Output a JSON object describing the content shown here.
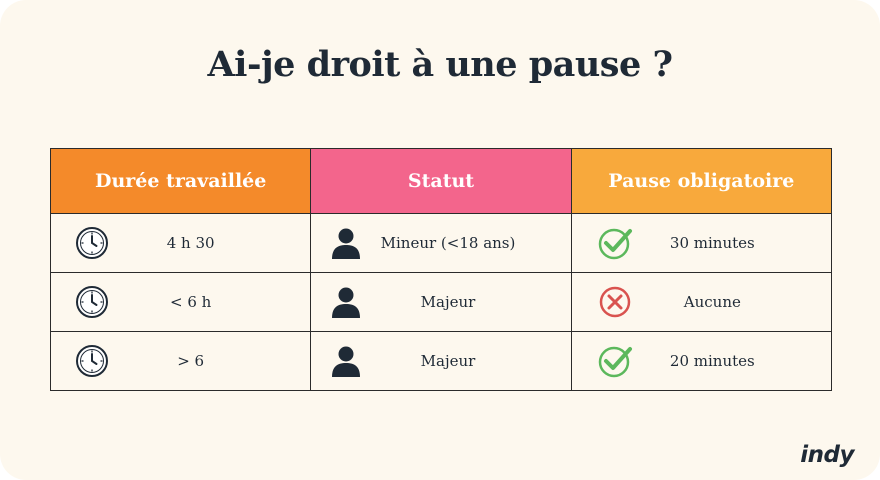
{
  "title": "Ai-je droit à une pause ?",
  "colors": {
    "background": "#fdf8ee",
    "header_duree": "#f48a2a",
    "header_statut": "#f3658c",
    "header_pause": "#f8a93c",
    "check_green": "#5cb85c",
    "cross_red": "#d9534f",
    "text_dark": "#1f2a36"
  },
  "table": {
    "headers": [
      "Durée travaillée",
      "Statut",
      "Pause obligatoire"
    ],
    "rows": [
      {
        "duree": "4 h 30",
        "duree_icon": "clock-icon",
        "statut": "Mineur (<18 ans)",
        "statut_icon": "person-icon",
        "pause": "30 minutes",
        "pause_icon": "check-icon"
      },
      {
        "duree": "< 6 h",
        "duree_icon": "clock-icon",
        "statut": "Majeur",
        "statut_icon": "person-icon",
        "pause": "Aucune",
        "pause_icon": "cross-icon"
      },
      {
        "duree": "> 6",
        "duree_icon": "clock-icon",
        "statut": "Majeur",
        "statut_icon": "person-icon",
        "pause": "20 minutes",
        "pause_icon": "check-icon"
      }
    ]
  },
  "logo": "indy"
}
